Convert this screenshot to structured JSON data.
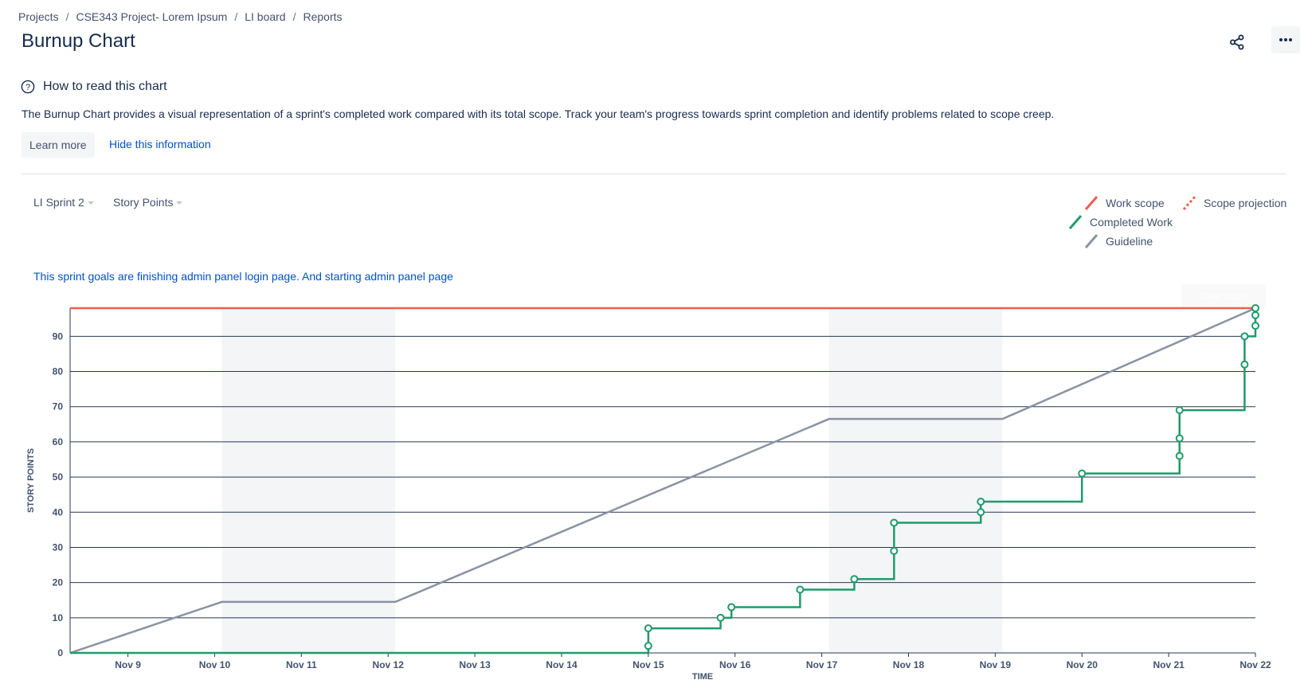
{
  "breadcrumbs": [
    "Projects",
    "CSE343 Project- Lorem Ipsum",
    "LI board",
    "Reports"
  ],
  "page_title": "Burnup Chart",
  "info": {
    "title": "How to read this chart",
    "description": "The Burnup Chart provides a visual representation of a sprint's completed work compared with its total scope. Track your team's progress towards sprint completion and identify problems related to scope creep.",
    "learn_more": "Learn more",
    "hide_link": "Hide this information"
  },
  "filters": {
    "sprint": "LI Sprint 2",
    "estimation": "Story Points"
  },
  "legend": {
    "work_scope": "Work scope",
    "scope_projection": "Scope projection",
    "completed_work": "Completed Work",
    "guideline": "Guideline"
  },
  "sprint_goal": "This sprint goals are finishing admin panel login page. And starting admin panel page",
  "clear_zoom_label": "Clear zoom",
  "icons": [
    "share-icon",
    "more-icon",
    "question-circle-icon"
  ],
  "colors": {
    "work_scope": "#f15c4f",
    "completed_work": "#1f9b6a",
    "guideline": "#8993a4",
    "weekend_band": "#f4f5f7",
    "link": "#0052cc"
  },
  "chart_data": {
    "type": "line",
    "xlabel": "TIME",
    "ylabel": "STORY POINTS",
    "ylim": [
      0,
      98
    ],
    "yticks": [
      0,
      10,
      20,
      30,
      40,
      50,
      60,
      70,
      80,
      90
    ],
    "xlim": [
      "2023-11-08 20:00",
      "2023-11-22 12:00"
    ],
    "x_ticks": [
      {
        "label": "Nov 9",
        "t": "2023-11-09 12:00"
      },
      {
        "label": "Nov 10",
        "t": "2023-11-10 12:00"
      },
      {
        "label": "Nov 11",
        "t": "2023-11-11 12:00"
      },
      {
        "label": "Nov 12",
        "t": "2023-11-12 12:00"
      },
      {
        "label": "Nov 13",
        "t": "2023-11-13 12:00"
      },
      {
        "label": "Nov 14",
        "t": "2023-11-14 12:00"
      },
      {
        "label": "Nov 15",
        "t": "2023-11-15 12:00"
      },
      {
        "label": "Nov 16",
        "t": "2023-11-16 12:00"
      },
      {
        "label": "Nov 17",
        "t": "2023-11-17 12:00"
      },
      {
        "label": "Nov 18",
        "t": "2023-11-18 12:00"
      },
      {
        "label": "Nov 19",
        "t": "2023-11-19 12:00"
      },
      {
        "label": "Nov 20",
        "t": "2023-11-20 12:00"
      },
      {
        "label": "Nov 21",
        "t": "2023-11-21 12:00"
      },
      {
        "label": "Nov 22",
        "t": "2023-11-22 12:00"
      }
    ],
    "non_working_periods": [
      {
        "start": "2023-11-10 14:00",
        "end": "2023-11-12 14:00"
      },
      {
        "start": "2023-11-17 14:00",
        "end": "2023-11-19 14:00"
      }
    ],
    "work_scope": {
      "name": "Work scope",
      "value": 98
    },
    "guideline": {
      "name": "Guideline",
      "points": [
        {
          "t": "2023-11-08 20:00",
          "y": 0
        },
        {
          "t": "2023-11-10 14:00",
          "y": 14.5
        },
        {
          "t": "2023-11-12 14:00",
          "y": 14.5
        },
        {
          "t": "2023-11-17 14:00",
          "y": 66.5
        },
        {
          "t": "2023-11-19 14:00",
          "y": 66.5
        },
        {
          "t": "2023-11-22 12:00",
          "y": 98
        }
      ]
    },
    "completed_work": {
      "name": "Completed Work",
      "steps": [
        {
          "t": "2023-11-08 20:00",
          "y": 0
        },
        {
          "t": "2023-11-15 12:00",
          "y": 2
        },
        {
          "t": "2023-11-15 12:00",
          "y": 7
        },
        {
          "t": "2023-11-16 08:00",
          "y": 10
        },
        {
          "t": "2023-11-16 11:00",
          "y": 13
        },
        {
          "t": "2023-11-17 06:00",
          "y": 18
        },
        {
          "t": "2023-11-17 21:00",
          "y": 21
        },
        {
          "t": "2023-11-18 08:00",
          "y": 29
        },
        {
          "t": "2023-11-18 08:00",
          "y": 37
        },
        {
          "t": "2023-11-19 08:00",
          "y": 40
        },
        {
          "t": "2023-11-19 08:00",
          "y": 43
        },
        {
          "t": "2023-11-20 12:00",
          "y": 51
        },
        {
          "t": "2023-11-21 15:00",
          "y": 56
        },
        {
          "t": "2023-11-21 15:00",
          "y": 61
        },
        {
          "t": "2023-11-21 15:00",
          "y": 69
        },
        {
          "t": "2023-11-22 09:00",
          "y": 82
        },
        {
          "t": "2023-11-22 09:00",
          "y": 90
        },
        {
          "t": "2023-11-22 12:00",
          "y": 93
        },
        {
          "t": "2023-11-22 12:00",
          "y": 96
        },
        {
          "t": "2023-11-22 12:00",
          "y": 98
        }
      ]
    }
  }
}
